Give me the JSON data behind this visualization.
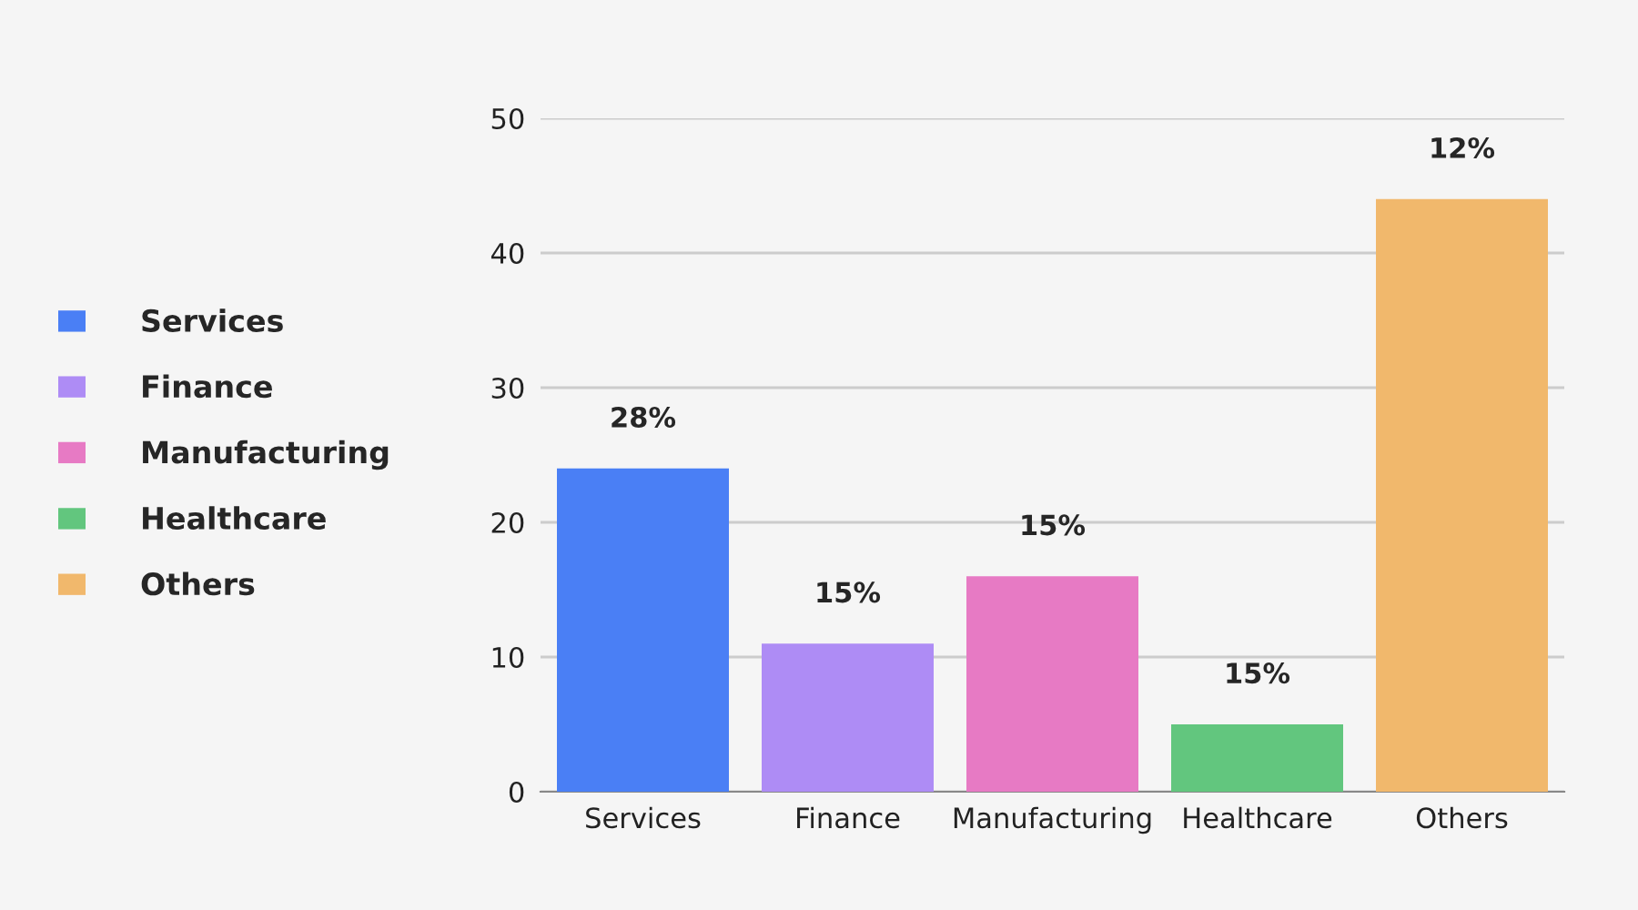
{
  "chart_data": {
    "type": "bar",
    "categories": [
      "Services",
      "Finance",
      "Manufacturing",
      "Healthcare",
      "Others"
    ],
    "series": [
      {
        "name": "Services",
        "color": "#4a7ff5",
        "values": [
          24,
          null,
          null,
          null,
          null
        ]
      },
      {
        "name": "Finance",
        "color": "#ae8cf5",
        "values": [
          null,
          11,
          null,
          null,
          null
        ]
      },
      {
        "name": "Manufacturing",
        "color": "#e77ac4",
        "values": [
          null,
          null,
          16,
          null,
          null
        ]
      },
      {
        "name": "Healthcare",
        "color": "#62c67e",
        "values": [
          null,
          null,
          null,
          5,
          null
        ]
      },
      {
        "name": "Others",
        "color": "#f1b86c",
        "values": [
          null,
          null,
          null,
          null,
          44
        ]
      }
    ],
    "value_labels": [
      "28%",
      "15%",
      "15%",
      "15%",
      "12%"
    ],
    "ylim": [
      0,
      50
    ],
    "yticks": [
      0,
      10,
      20,
      30,
      40,
      50
    ],
    "grid": "y",
    "legend": "left"
  }
}
